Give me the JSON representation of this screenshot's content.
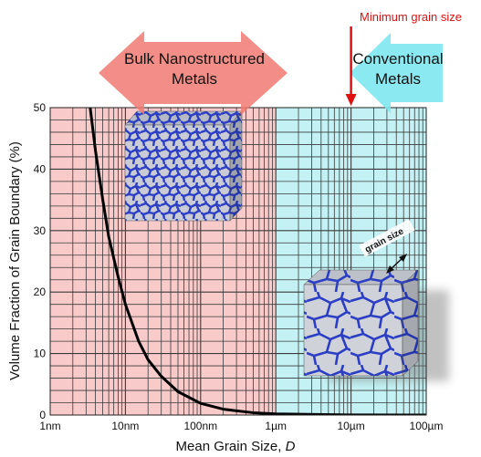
{
  "chart_data": {
    "type": "line",
    "xlabel_main": "Mean Grain Size, ",
    "xlabel_var": "D",
    "ylabel": "Volume Fraction of Grain Boundary (%)",
    "x_scale": "log",
    "x_unit": "nm",
    "xlim": [
      1,
      100000
    ],
    "ylim": [
      0,
      50
    ],
    "x_ticks": [
      {
        "value": 1,
        "label": "1nm"
      },
      {
        "value": 10,
        "label": "10nm"
      },
      {
        "value": 100,
        "label": "100nm"
      },
      {
        "value": 1000,
        "label": "1µm"
      },
      {
        "value": 10000,
        "label": "10µm"
      },
      {
        "value": 100000,
        "label": "100µm"
      }
    ],
    "y_ticks": [
      0,
      10,
      20,
      30,
      40,
      50
    ],
    "grid": true,
    "regions": [
      {
        "name": "Bulk Nanostructured Metals",
        "from": 1,
        "to": 1000,
        "color": "#f9caca"
      },
      {
        "name": "Conventional Metals",
        "from": 1000,
        "to": 100000,
        "color": "#c4f2f4"
      }
    ],
    "series": [
      {
        "color": "#000000",
        "x": [
          3.4,
          4,
          5,
          6,
          8,
          10,
          15,
          20,
          30,
          50,
          100,
          200,
          500,
          1000,
          10000,
          100000
        ],
        "y": [
          50,
          43,
          35,
          29,
          22.5,
          18,
          12,
          9,
          6.3,
          3.8,
          1.9,
          0.95,
          0.38,
          0.18,
          0.02,
          0
        ]
      }
    ]
  },
  "annotations": {
    "nano_label_line1": "Bulk Nanostructured",
    "nano_label_line2": "Metals",
    "conv_label_line1": "Conventional",
    "conv_label_line2": "Metals",
    "min_grain_label": "Minimum grain size",
    "min_grain_x": 10000,
    "grain_size_label": "grain size"
  },
  "colors": {
    "nano_band": "#f9caca",
    "conv_band": "#c4f2f4",
    "nano_arrow": "#f07a72",
    "conv_arrow": "#7ee8f0",
    "min_marker": "#dd1111",
    "grain_blue": "#2b3ec4",
    "grain_fill": "#c9ccd4"
  }
}
